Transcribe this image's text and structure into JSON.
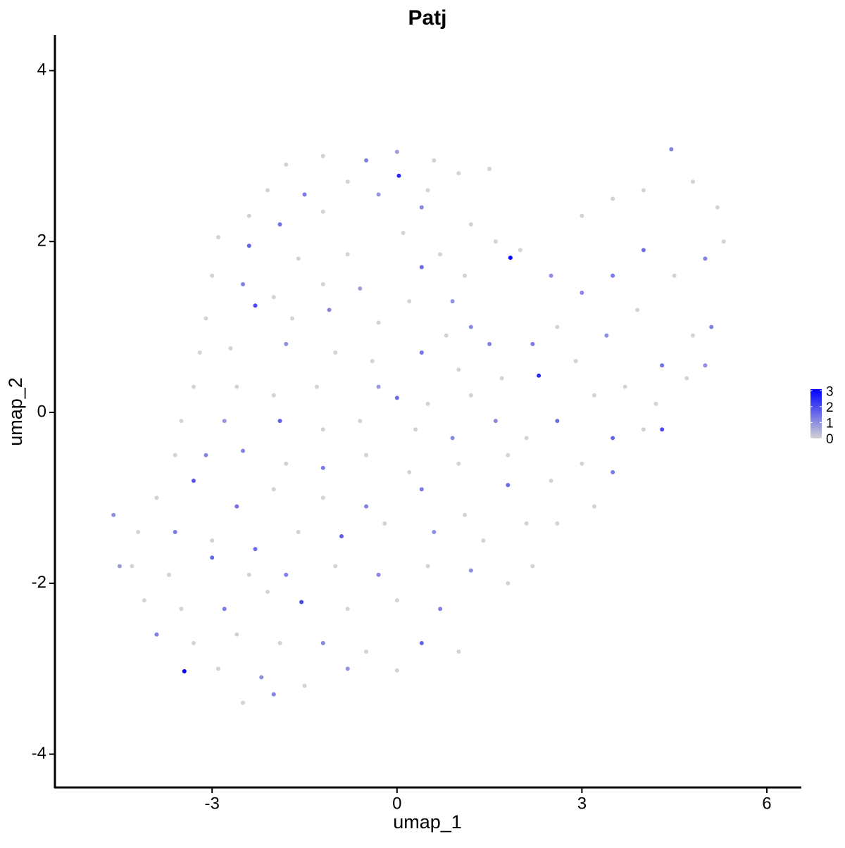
{
  "chart_data": {
    "type": "scatter",
    "title": "Patj",
    "x_label": "umap_1",
    "y_label": "umap_2",
    "xlim": [
      -5.55,
      6.56
    ],
    "ylim": [
      -4.39,
      4.415
    ],
    "xticks": [
      -3,
      0,
      3,
      6
    ],
    "yticks": [
      -4,
      -2,
      0,
      2,
      4
    ],
    "low_color": "#d3d3d3",
    "high_color": "#0000ff",
    "colorbar_lim": [
      0,
      3.1
    ],
    "colorbar_ticks": [
      0,
      1,
      2,
      3
    ],
    "x": [
      -1.8,
      -1.2,
      -0.5,
      0,
      0.6,
      1.0,
      -2.1,
      -1.5,
      -0.8,
      0.03,
      0.5,
      1.5,
      -2.4,
      -1.9,
      -1.2,
      -0.3,
      0.4,
      1.2,
      1.6,
      -2.9,
      -2.4,
      -1.6,
      -0.8,
      0.1,
      0.7,
      1.1,
      -3.0,
      -2.5,
      -2.0,
      -1.2,
      -0.6,
      0.4,
      0.9,
      -3.1,
      -2.3,
      -1.7,
      -1.1,
      -0.3,
      0.2,
      0.8,
      1.2,
      -3.2,
      -2.7,
      -1.8,
      -1.0,
      -0.4,
      0.4,
      1.0,
      1.5,
      -3.3,
      -2.6,
      -2.0,
      -1.3,
      -0.3,
      0.0,
      0.5,
      1.2,
      1.7,
      -3.5,
      -2.8,
      -1.9,
      -1.2,
      -0.6,
      0.3,
      0.9,
      1.6,
      -3.6,
      -3.1,
      -2.5,
      -1.8,
      -1.2,
      -0.5,
      0.2,
      1.0,
      1.8,
      -3.9,
      -3.3,
      -2.6,
      -2.0,
      -1.2,
      -0.5,
      0.4,
      1.1,
      1.8,
      -4.2,
      -3.6,
      -3.0,
      -2.3,
      -1.6,
      -0.9,
      -0.2,
      0.6,
      1.4,
      2.1,
      -4.3,
      -3.7,
      -3.0,
      -2.4,
      -1.8,
      -1.0,
      -0.3,
      0.5,
      1.2,
      -4.1,
      -3.5,
      -2.8,
      -2.1,
      -1.55,
      -0.8,
      0.0,
      0.7,
      -3.9,
      -3.3,
      -2.6,
      -1.9,
      -1.2,
      -0.5,
      0.4,
      1.0,
      -3.45,
      -2.9,
      -2.2,
      -1.5,
      -0.8,
      0.0,
      -2.5,
      -2.0,
      -4.6,
      -4.5,
      2.0,
      2.5,
      3.0,
      3.5,
      4.0,
      4.45,
      4.8,
      5.2,
      5.3,
      1.84,
      2.3,
      2.6,
      3.0,
      3.5,
      4.0,
      4.5,
      5.0,
      2.2,
      2.9,
      3.4,
      3.9,
      4.3,
      4.8,
      5.1,
      2.1,
      2.6,
      3.2,
      3.7,
      4.2,
      4.7,
      5.0,
      2.5,
      3.0,
      3.5,
      4.0,
      4.3,
      2.6,
      3.2,
      3.5,
      2.2,
      1.8
    ],
    "y": [
      2.9,
      3.0,
      2.95,
      3.05,
      2.95,
      2.8,
      2.6,
      2.55,
      2.7,
      2.77,
      2.6,
      2.85,
      2.3,
      2.2,
      2.35,
      2.55,
      2.4,
      2.2,
      2.0,
      2.05,
      1.95,
      1.8,
      1.85,
      2.1,
      1.85,
      1.6,
      1.6,
      1.5,
      1.35,
      1.5,
      1.45,
      1.7,
      1.3,
      1.1,
      1.25,
      1.1,
      1.2,
      1.05,
      1.3,
      0.9,
      1.0,
      0.7,
      0.75,
      0.8,
      0.7,
      0.6,
      0.7,
      0.5,
      0.8,
      0.3,
      0.3,
      0.2,
      0.3,
      0.3,
      0.17,
      0.1,
      0.2,
      0.4,
      -0.1,
      -0.1,
      -0.1,
      -0.2,
      -0.1,
      -0.2,
      -0.3,
      -0.1,
      -0.5,
      -0.5,
      -0.45,
      -0.6,
      -0.65,
      -0.5,
      -0.7,
      -0.6,
      -0.5,
      -1.0,
      -0.8,
      -1.1,
      -0.9,
      -1.0,
      -1.1,
      -0.9,
      -1.2,
      -0.85,
      -1.4,
      -1.4,
      -1.5,
      -1.6,
      -1.4,
      -1.45,
      -1.3,
      -1.4,
      -1.5,
      -1.3,
      -1.8,
      -1.9,
      -1.7,
      -1.9,
      -1.9,
      -1.8,
      -1.9,
      -1.8,
      -1.85,
      -2.2,
      -2.3,
      -2.3,
      -2.1,
      -2.22,
      -2.3,
      -2.2,
      -2.3,
      -2.6,
      -2.7,
      -2.6,
      -2.7,
      -2.7,
      -2.8,
      -2.7,
      -2.8,
      -3.03,
      -3.0,
      -3.1,
      -3.2,
      -3.0,
      -3.02,
      -3.4,
      -3.3,
      -1.2,
      -1.8,
      1.9,
      1.6,
      2.3,
      2.5,
      2.6,
      3.08,
      2.7,
      2.4,
      2.0,
      1.81,
      0.43,
      1.0,
      1.4,
      1.6,
      1.9,
      1.6,
      1.8,
      0.8,
      0.6,
      0.9,
      1.2,
      0.55,
      0.9,
      1.0,
      -0.3,
      -0.1,
      0.2,
      0.3,
      0.1,
      0.4,
      0.55,
      -0.8,
      -0.6,
      -0.7,
      -0.2,
      -0.2,
      -1.3,
      -1.1,
      -0.3,
      -1.8,
      -2.0
    ],
    "values": [
      0,
      0,
      1.2,
      0.8,
      0,
      0,
      0,
      1.3,
      0,
      2.5,
      0,
      0,
      0,
      1.4,
      0,
      0.9,
      1.1,
      0,
      0,
      0,
      1.6,
      0,
      0,
      0,
      0,
      0,
      0,
      1.2,
      0,
      0,
      0.8,
      1.5,
      1.0,
      0,
      2.0,
      0,
      1.1,
      0,
      0,
      0,
      1.1,
      0,
      0,
      1.0,
      0,
      0,
      1.4,
      0,
      1.2,
      0,
      0,
      0,
      0,
      0.9,
      1.5,
      0,
      0,
      0,
      0,
      0.9,
      1.7,
      0,
      0,
      0,
      1.1,
      1.1,
      0,
      1.1,
      1.2,
      0,
      1.3,
      0,
      0,
      0,
      0,
      0,
      1.8,
      1.4,
      0,
      0,
      1.2,
      1.3,
      0,
      1.5,
      0,
      1.3,
      0,
      1.5,
      0,
      1.7,
      0,
      1.0,
      0,
      0,
      0,
      0,
      1.6,
      0,
      1.2,
      0,
      1.1,
      0,
      1.0,
      0,
      0,
      1.3,
      0,
      2.0,
      0,
      0,
      1.2,
      1.2,
      0,
      0,
      0,
      1.1,
      0,
      1.6,
      0,
      3.0,
      0,
      1.0,
      0,
      0.9,
      0,
      0,
      1.2,
      1.0,
      0.8,
      0,
      1.0,
      0,
      0,
      0,
      1.2,
      0,
      0,
      0,
      3.0,
      2.5,
      0,
      1.1,
      1.3,
      1.5,
      0,
      1.2,
      1.3,
      0,
      1.0,
      0,
      1.5,
      0,
      1.2,
      0,
      1.5,
      0,
      0,
      0,
      0,
      1.0,
      0,
      0,
      1.3,
      0,
      2.0,
      0,
      0,
      1.6,
      0,
      0
    ]
  }
}
